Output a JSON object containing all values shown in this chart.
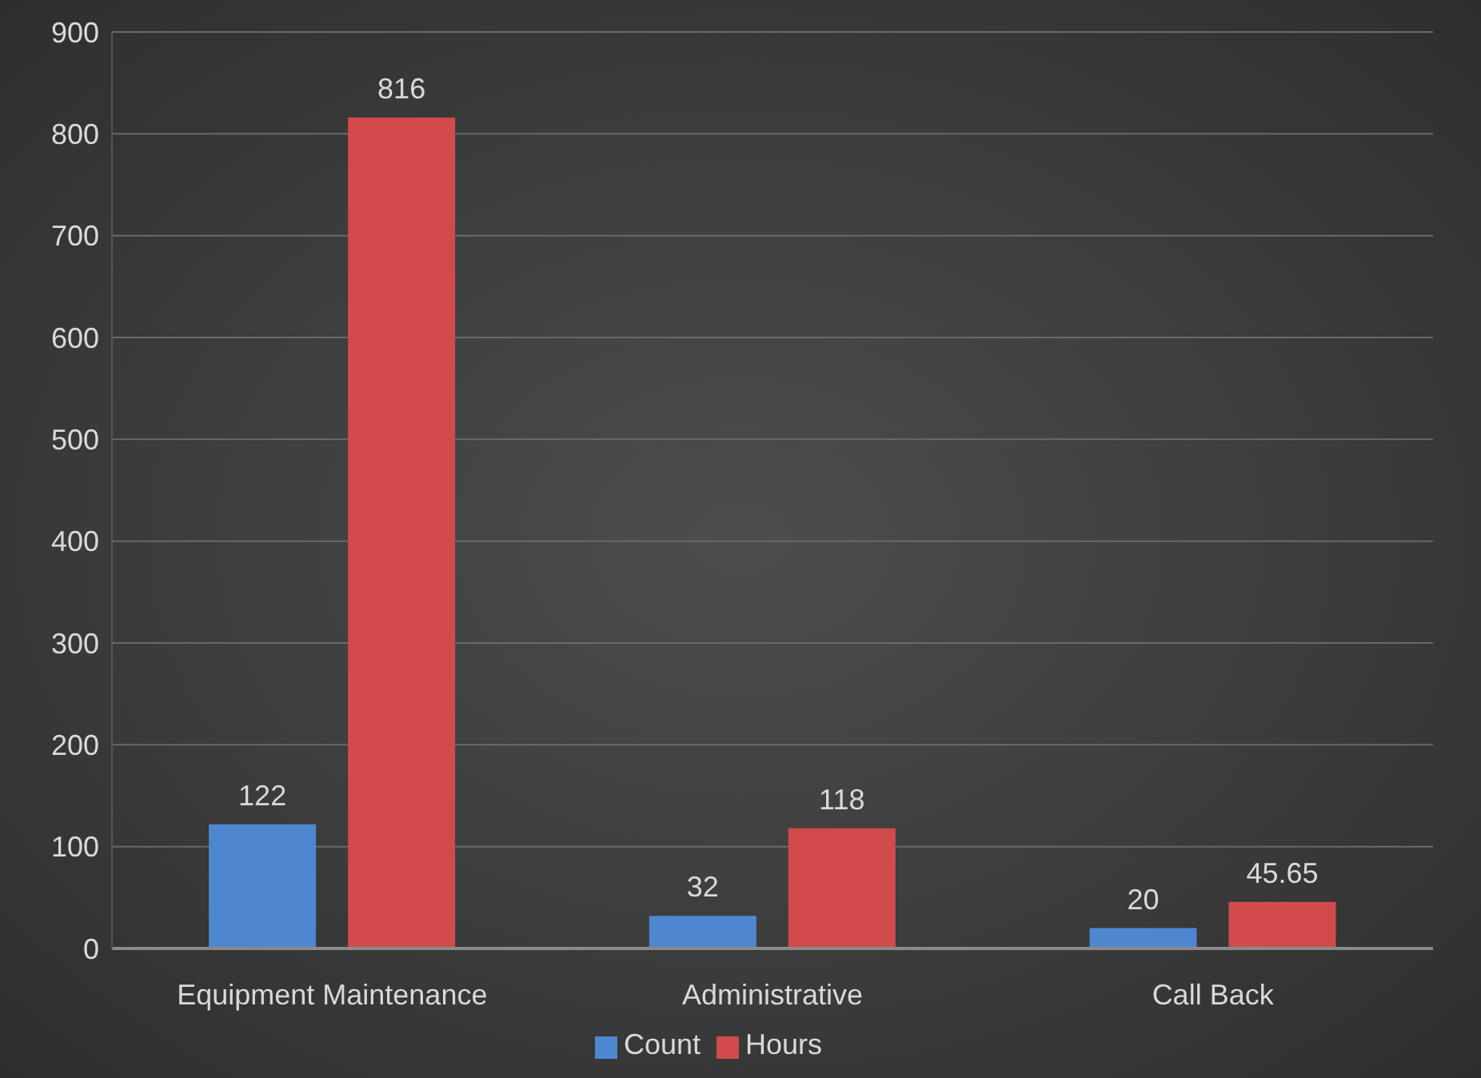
{
  "chart_data": {
    "type": "bar",
    "categories": [
      "Equipment Maintenance",
      "Administrative",
      "Call Back"
    ],
    "series": [
      {
        "name": "Count",
        "color": "#4f86d0",
        "values": [
          122,
          32,
          20
        ]
      },
      {
        "name": "Hours",
        "color": "#d24b4b",
        "values": [
          816,
          118,
          45.65
        ]
      }
    ],
    "ylim": [
      0,
      900
    ],
    "yticks": [
      0,
      100,
      200,
      300,
      400,
      500,
      600,
      700,
      800,
      900
    ],
    "grid": "y",
    "legend": "bottom",
    "data_labels": true
  }
}
